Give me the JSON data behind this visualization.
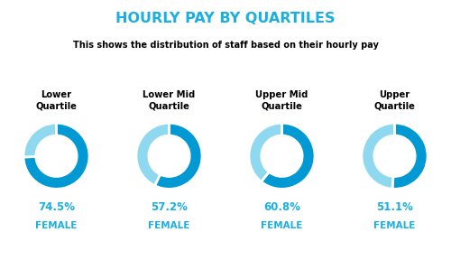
{
  "title": "HOURLY PAY BY QUARTILES",
  "subtitle": "This shows the distribution of staff based on their hourly pay",
  "title_color": "#1AAFE3",
  "subtitle_color": "#000000",
  "quartiles": [
    {
      "label": "Lower\nQuartile",
      "female": 74.5,
      "male": 25.5
    },
    {
      "label": "Lower Mid\nQuartile",
      "female": 57.2,
      "male": 42.8
    },
    {
      "label": "Upper Mid\nQuartile",
      "female": 60.8,
      "male": 39.2
    },
    {
      "label": "Upper\nQuartile",
      "female": 51.1,
      "male": 48.9
    }
  ],
  "female_color": "#0099D4",
  "male_color": "#8ED8F0",
  "label_color": "#1AAFE3",
  "background_color": "#ffffff",
  "outer_r": 1.0,
  "inner_r": 0.62,
  "title_fontsize": 11.5,
  "subtitle_fontsize": 7.0,
  "quartile_label_fontsize": 7.2,
  "value_fontsize": 8.5,
  "female_label_fontsize": 7.5
}
